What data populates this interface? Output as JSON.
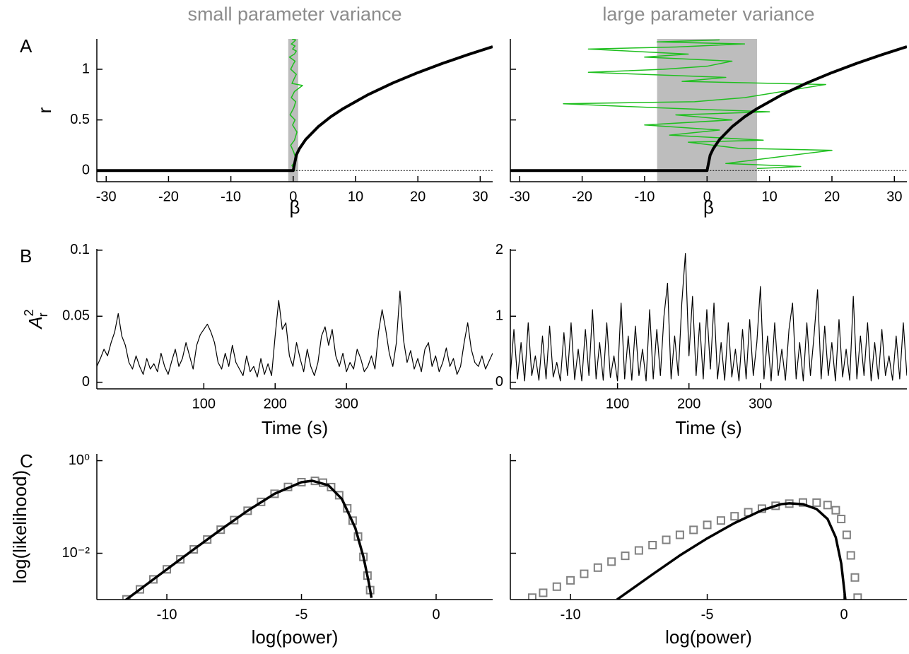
{
  "chart_data": [
    {
      "type": "line",
      "panel_label": "A",
      "title": "small parameter variance",
      "xlabel": "β",
      "ylabel": "r",
      "xlim": [
        -31.5,
        32
      ],
      "ylim": [
        -0.11,
        1.3
      ],
      "xticks": [
        -30,
        -20,
        -10,
        0,
        10,
        20,
        30
      ],
      "yticks": [
        0,
        0.5,
        1
      ],
      "ytick_labels": true,
      "shade": [
        -0.8,
        0.8
      ],
      "shade_color": "#bdbdbd",
      "series": [
        {
          "color": "#1fbf1f",
          "linewidth": 1.5,
          "x": [
            0.3,
            -0.2,
            0.5,
            0.1,
            -0.4,
            0.2,
            0.6,
            -0.1,
            0.3,
            -0.5,
            0.1,
            0.4,
            -0.3,
            0.2,
            1.5,
            -0.2,
            0.1,
            0.5,
            -0.4,
            0.0,
            0.3,
            -0.6,
            0.2,
            0.5,
            -0.1,
            0.3,
            -0.3,
            0.1,
            0.4,
            -0.2
          ],
          "values": [
            0.0,
            0.05,
            0.1,
            0.18,
            0.25,
            0.3,
            0.38,
            0.45,
            0.5,
            0.55,
            0.62,
            0.68,
            0.72,
            0.78,
            0.84,
            0.86,
            0.9,
            0.95,
            1.0,
            1.05,
            1.08,
            1.12,
            1.15,
            1.18,
            1.2,
            1.23,
            1.25,
            1.27,
            1.29,
            1.3
          ]
        },
        {
          "color": "#000000",
          "linewidth": 1,
          "dash": "dotted",
          "x": [
            0,
            32
          ],
          "values": [
            0,
            0
          ]
        },
        {
          "color": "#000000",
          "linewidth": 4,
          "x": [
            -31.5,
            0,
            0.5,
            1,
            2,
            4,
            6,
            8,
            12,
            16,
            20,
            24,
            28,
            32
          ],
          "values": [
            0,
            0,
            0.153,
            0.216,
            0.306,
            0.432,
            0.53,
            0.611,
            0.749,
            0.865,
            0.967,
            1.059,
            1.144,
            1.223
          ]
        }
      ]
    },
    {
      "type": "line",
      "title": "large parameter variance",
      "xlabel": "β",
      "xlim": [
        -31.5,
        32
      ],
      "ylim": [
        -0.11,
        1.3
      ],
      "xticks": [
        -30,
        -20,
        -10,
        0,
        10,
        20,
        30
      ],
      "yticks": [
        0,
        0.5,
        1
      ],
      "ytick_labels": false,
      "shade": [
        -8,
        8
      ],
      "shade_color": "#bdbdbd",
      "series": [
        {
          "color": "#1fbf1f",
          "linewidth": 1.5,
          "x": [
            8,
            15,
            3,
            20,
            5,
            -3,
            9,
            -6,
            2,
            -10,
            4,
            -5,
            10,
            -8,
            -23,
            -2,
            6,
            19,
            -4,
            3,
            -19,
            -7,
            0,
            4,
            -10,
            -3,
            -19,
            -5,
            6,
            -8,
            2
          ],
          "values": [
            0.02,
            0.04,
            0.07,
            0.2,
            0.22,
            0.28,
            0.3,
            0.35,
            0.4,
            0.45,
            0.5,
            0.55,
            0.58,
            0.62,
            0.66,
            0.68,
            0.72,
            0.85,
            0.88,
            0.92,
            0.97,
            1.0,
            1.03,
            1.08,
            1.12,
            1.15,
            1.2,
            1.22,
            1.25,
            1.27,
            1.29
          ]
        },
        {
          "color": "#000000",
          "linewidth": 1,
          "dash": "dotted",
          "x": [
            0,
            32
          ],
          "values": [
            0,
            0
          ]
        },
        {
          "color": "#000000",
          "linewidth": 4,
          "x": [
            -31.5,
            0,
            0.5,
            1,
            2,
            4,
            6,
            8,
            12,
            16,
            20,
            24,
            28,
            32
          ],
          "values": [
            0,
            0,
            0.153,
            0.216,
            0.306,
            0.432,
            0.53,
            0.611,
            0.749,
            0.865,
            0.967,
            1.059,
            1.144,
            1.223
          ]
        }
      ]
    },
    {
      "type": "line",
      "panel_label": "B",
      "xlabel": "Time (s)",
      "ylabel": {
        "base": "A",
        "sup": "2",
        "sub": "r"
      },
      "xlim": [
        -50,
        505
      ],
      "ylim": [
        -0.005,
        0.101
      ],
      "xticks": [
        100,
        200,
        300
      ],
      "yticks": [
        0,
        0.05,
        0.1
      ],
      "ytick_labels": true,
      "series": [
        {
          "color": "#000000",
          "linewidth": 1.2,
          "x": [
            -50,
            -45,
            -40,
            -35,
            -30,
            -25,
            -20,
            -15,
            -10,
            -5,
            0,
            5,
            10,
            15,
            20,
            25,
            30,
            35,
            40,
            45,
            50,
            55,
            60,
            65,
            70,
            75,
            80,
            85,
            90,
            95,
            100,
            105,
            110,
            115,
            120,
            125,
            130,
            135,
            140,
            145,
            150,
            155,
            160,
            165,
            170,
            175,
            180,
            185,
            190,
            195,
            200,
            205,
            210,
            215,
            220,
            225,
            230,
            235,
            240,
            245,
            250,
            255,
            260,
            265,
            270,
            275,
            280,
            285,
            290,
            295,
            300,
            305,
            310,
            315,
            320,
            325,
            330,
            335,
            340,
            345,
            350,
            355,
            360,
            365,
            370,
            375,
            380,
            385,
            390,
            395,
            400,
            405,
            410,
            415,
            420,
            425,
            430,
            435,
            440,
            445,
            450,
            455,
            460,
            465,
            470,
            475,
            480,
            485,
            490,
            495,
            500,
            505
          ],
          "values": [
            0.012,
            0.018,
            0.025,
            0.02,
            0.03,
            0.038,
            0.052,
            0.035,
            0.028,
            0.015,
            0.01,
            0.02,
            0.012,
            0.006,
            0.018,
            0.01,
            0.014,
            0.008,
            0.022,
            0.012,
            0.006,
            0.016,
            0.025,
            0.012,
            0.018,
            0.03,
            0.02,
            0.01,
            0.028,
            0.036,
            0.04,
            0.044,
            0.038,
            0.03,
            0.015,
            0.01,
            0.022,
            0.012,
            0.028,
            0.015,
            0.01,
            0.005,
            0.02,
            0.008,
            0.012,
            0.004,
            0.018,
            0.006,
            0.014,
            0.005,
            0.035,
            0.062,
            0.04,
            0.045,
            0.02,
            0.012,
            0.03,
            0.018,
            0.008,
            0.025,
            0.012,
            0.005,
            0.015,
            0.035,
            0.042,
            0.028,
            0.04,
            0.02,
            0.012,
            0.022,
            0.008,
            0.015,
            0.01,
            0.025,
            0.018,
            0.008,
            0.012,
            0.02,
            0.01,
            0.038,
            0.055,
            0.04,
            0.022,
            0.012,
            0.03,
            0.069,
            0.032,
            0.015,
            0.024,
            0.01,
            0.018,
            0.008,
            0.025,
            0.03,
            0.012,
            0.02,
            0.008,
            0.015,
            0.026,
            0.012,
            0.018,
            0.006,
            0.012,
            0.03,
            0.045,
            0.025,
            0.015,
            0.012,
            0.02,
            0.01,
            0.016,
            0.022
          ]
        }
      ]
    },
    {
      "type": "line",
      "xlabel": "Time (s)",
      "xlim": [
        -50,
        505
      ],
      "ylim": [
        -0.1,
        2.02
      ],
      "xticks": [
        100,
        200,
        300
      ],
      "yticks": [
        0,
        1,
        2
      ],
      "ytick_labels": true,
      "series": [
        {
          "color": "#000000",
          "linewidth": 1.2,
          "x": [
            -50,
            -45,
            -40,
            -35,
            -30,
            -25,
            -20,
            -15,
            -10,
            -5,
            0,
            5,
            10,
            15,
            20,
            25,
            30,
            35,
            40,
            45,
            50,
            55,
            60,
            65,
            70,
            75,
            80,
            85,
            90,
            95,
            100,
            105,
            110,
            115,
            120,
            125,
            130,
            135,
            140,
            145,
            150,
            155,
            160,
            165,
            170,
            175,
            180,
            185,
            190,
            195,
            200,
            205,
            210,
            215,
            220,
            225,
            230,
            235,
            240,
            245,
            250,
            255,
            260,
            265,
            270,
            275,
            280,
            285,
            290,
            295,
            300,
            305,
            310,
            315,
            320,
            325,
            330,
            335,
            340,
            345,
            350,
            355,
            360,
            365,
            370,
            375,
            380,
            385,
            390,
            395,
            400,
            405,
            410,
            415,
            420,
            425,
            430,
            435,
            440,
            445,
            450,
            455,
            460,
            465,
            470,
            475,
            480,
            485,
            490,
            495,
            500,
            505
          ],
          "values": [
            0.1,
            0.8,
            0.05,
            0.6,
            0.02,
            0.9,
            0.1,
            0.4,
            0.03,
            0.7,
            0.05,
            0.85,
            0.08,
            0.3,
            0.02,
            0.75,
            0.1,
            0.9,
            0.04,
            0.5,
            0.02,
            0.8,
            0.1,
            1.1,
            0.05,
            0.6,
            0.03,
            0.9,
            0.07,
            0.4,
            0.02,
            1.2,
            0.05,
            0.7,
            0.03,
            0.85,
            0.1,
            0.5,
            0.02,
            1.1,
            0.05,
            0.8,
            0.1,
            1.0,
            1.5,
            0.05,
            0.7,
            0.1,
            1.2,
            1.95,
            0.4,
            1.3,
            0.1,
            0.9,
            0.05,
            1.1,
            0.2,
            1.2,
            0.05,
            0.6,
            0.03,
            0.9,
            0.08,
            0.5,
            0.02,
            0.8,
            0.05,
            0.95,
            0.1,
            0.6,
            1.45,
            0.05,
            0.7,
            0.02,
            0.9,
            0.1,
            0.5,
            0.03,
            0.8,
            1.2,
            0.05,
            0.6,
            0.02,
            0.9,
            0.1,
            0.7,
            1.4,
            0.05,
            0.85,
            0.1,
            0.6,
            0.02,
            0.95,
            0.08,
            0.5,
            0.03,
            1.3,
            0.05,
            0.7,
            0.1,
            0.9,
            0.02,
            0.6,
            0.05,
            0.8,
            0.1,
            0.4,
            0.03,
            0.7,
            0.05,
            0.9,
            0.1
          ]
        }
      ]
    },
    {
      "type": "line",
      "panel_label": "C",
      "xlabel": "log(power)",
      "ylabel": "log(likelihood)",
      "ylog": true,
      "xlim": [
        -12.6,
        2.1
      ],
      "ylim": [
        0.001,
        1.4
      ],
      "xticks": [
        -10,
        -5,
        0
      ],
      "yticks": [
        {
          "value": 0.01,
          "label": "10⁻²"
        },
        {
          "value": 1,
          "label": "10⁰"
        }
      ],
      "ytick_labels": true,
      "series": [
        {
          "color": "#808080",
          "marker": "square",
          "x": [
            -11.5,
            -11,
            -10.5,
            -10,
            -9.5,
            -9,
            -8.5,
            -8,
            -7.5,
            -7,
            -6.5,
            -6,
            -5.5,
            -5,
            -4.5,
            -4.2,
            -3.9,
            -3.6,
            -3.3,
            -3.1,
            -2.9,
            -2.7,
            -2.55,
            -2.45
          ],
          "values": [
            0.00101,
            0.00166,
            0.00273,
            0.0045,
            0.00739,
            0.01213,
            0.0198,
            0.0323,
            0.0521,
            0.0829,
            0.1288,
            0.1927,
            0.2707,
            0.343,
            0.366,
            0.3355,
            0.2688,
            0.1794,
            0.0936,
            0.0507,
            0.023,
            0.00835,
            0.00329,
            0.0016
          ]
        },
        {
          "color": "#000000",
          "linewidth": 3.5,
          "x": [
            -11.6,
            -11,
            -10,
            -9,
            -8,
            -7,
            -6,
            -5,
            -4.6,
            -4,
            -3.5,
            -3,
            -2.7,
            -2.5,
            -2.4
          ],
          "values": [
            0.000911,
            0.00166,
            0.0045,
            0.01213,
            0.0323,
            0.0829,
            0.1927,
            0.343,
            0.368,
            0.2946,
            0.149,
            0.035,
            0.00835,
            0.00232,
            0.00109
          ]
        }
      ]
    },
    {
      "type": "line",
      "xlabel": "log(power)",
      "ylog": true,
      "xlim": [
        -12.2,
        2.3
      ],
      "ylim": [
        0.001,
        1.4
      ],
      "xticks": [
        -10,
        -5,
        0
      ],
      "yticks": [
        0.01,
        1
      ],
      "ytick_labels": false,
      "series": [
        {
          "color": "#808080",
          "marker": "square",
          "x": [
            -11.4,
            -11,
            -10.5,
            -10,
            -9.5,
            -9,
            -8.5,
            -8,
            -7.5,
            -7,
            -6.5,
            -6,
            -5.5,
            -5,
            -4.5,
            -4,
            -3.5,
            -3,
            -2.5,
            -2,
            -1.5,
            -1,
            -0.6,
            -0.3,
            -0.1,
            0.1,
            0.25,
            0.4,
            0.5
          ],
          "values": [
            0.0011,
            0.0014,
            0.0019,
            0.0026,
            0.0036,
            0.0049,
            0.0066,
            0.0088,
            0.0115,
            0.015,
            0.0195,
            0.025,
            0.032,
            0.041,
            0.051,
            0.063,
            0.077,
            0.092,
            0.106,
            0.118,
            0.125,
            0.124,
            0.11,
            0.085,
            0.055,
            0.025,
            0.009,
            0.003,
            0.0011
          ]
        },
        {
          "color": "#000000",
          "linewidth": 3.5,
          "x": [
            -8.3,
            -7,
            -6,
            -5,
            -4,
            -3,
            -2.3,
            -2,
            -1.5,
            -1,
            -0.6,
            -0.3,
            -0.1,
            0.05
          ],
          "values": [
            0.001,
            0.0035,
            0.009,
            0.021,
            0.045,
            0.085,
            0.115,
            0.12,
            0.115,
            0.09,
            0.055,
            0.022,
            0.006,
            0.001
          ]
        }
      ]
    }
  ]
}
